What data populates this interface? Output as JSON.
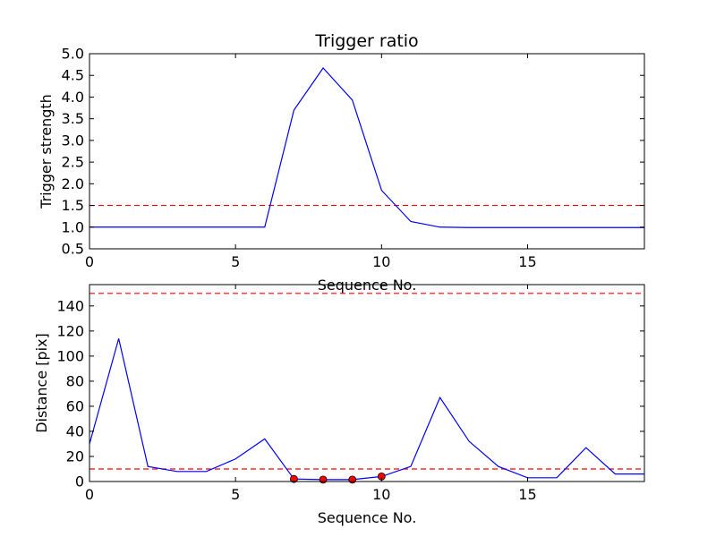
{
  "chart_data": [
    {
      "type": "line",
      "title": "Trigger ratio",
      "xlabel": "Sequence No.",
      "ylabel": "Trigger strength",
      "xlim": [
        0,
        19
      ],
      "ylim": [
        0.5,
        5.0
      ],
      "xticks": [
        0,
        5,
        10,
        15
      ],
      "xtick_labels": [
        "0",
        "5",
        "10",
        "15"
      ],
      "yticks": [
        0.5,
        1.0,
        1.5,
        2.0,
        2.5,
        3.0,
        3.5,
        4.0,
        4.5,
        5.0
      ],
      "ytick_labels": [
        "0.5",
        "1.0",
        "1.5",
        "2.0",
        "2.5",
        "3.0",
        "3.5",
        "4.0",
        "4.5",
        "5.0"
      ],
      "grid": false,
      "series": [
        {
          "color": "#0000ff",
          "style": "solid",
          "x": [
            0,
            1,
            2,
            3,
            4,
            5,
            6,
            7,
            8,
            9,
            10,
            11,
            12,
            13,
            14,
            15,
            16,
            17,
            18,
            19
          ],
          "y": [
            1.0,
            1.0,
            1.0,
            1.0,
            1.0,
            1.0,
            1.0,
            3.7,
            4.67,
            3.93,
            1.85,
            1.13,
            1.0,
            0.99,
            0.99,
            0.99,
            0.99,
            0.99,
            0.99,
            0.99
          ]
        }
      ],
      "hlines": [
        {
          "y": 1.5,
          "color": "#ff0000",
          "style": "dashed"
        }
      ]
    },
    {
      "type": "line",
      "title": "",
      "xlabel": "Sequence No.",
      "ylabel": "Distance [pix]",
      "xlim": [
        0,
        19
      ],
      "ylim": [
        0,
        157
      ],
      "xticks": [
        0,
        5,
        10,
        15
      ],
      "xtick_labels": [
        "0",
        "5",
        "10",
        "15"
      ],
      "yticks": [
        0,
        20,
        40,
        60,
        80,
        100,
        120,
        140
      ],
      "ytick_labels": [
        "0",
        "20",
        "40",
        "60",
        "80",
        "100",
        "120",
        "140"
      ],
      "grid": false,
      "series": [
        {
          "color": "#0000ff",
          "style": "solid",
          "x": [
            0,
            1,
            2,
            3,
            4,
            5,
            6,
            7,
            8,
            9,
            10,
            11,
            12,
            13,
            14,
            15,
            16,
            17,
            18,
            19
          ],
          "y": [
            30,
            114,
            12,
            8,
            8,
            18,
            34,
            2,
            1.5,
            1.5,
            4,
            12,
            67,
            32,
            12,
            3,
            3,
            27,
            6,
            6
          ]
        }
      ],
      "markers": {
        "color": "#ff0000",
        "x": [
          7,
          8,
          9,
          10
        ],
        "y": [
          2,
          1.5,
          1.5,
          4
        ]
      },
      "hlines": [
        {
          "y": 150,
          "color": "#ff0000",
          "style": "dashed"
        },
        {
          "y": 10,
          "color": "#ff0000",
          "style": "dashed"
        }
      ]
    }
  ]
}
